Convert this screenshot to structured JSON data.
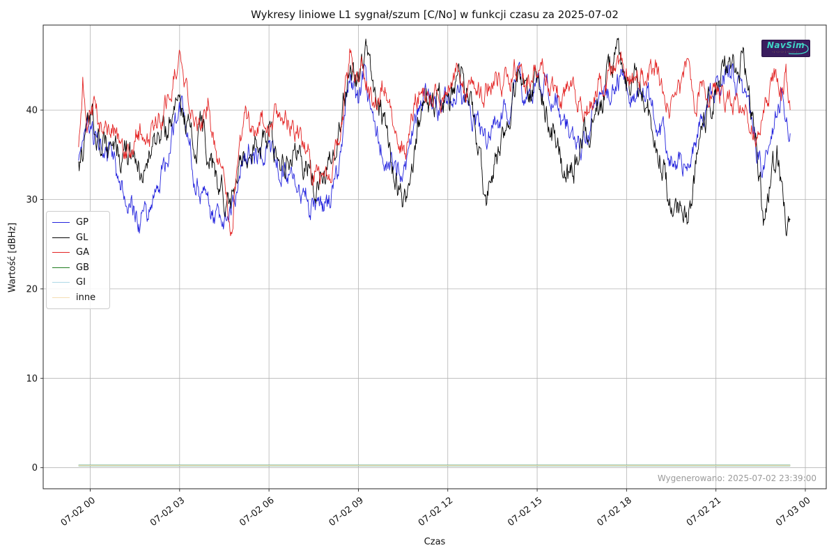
{
  "watermark": {
    "text": "Wygenerowano: 2025-07-02 23:39:00"
  },
  "logo": {
    "name": "NavSim",
    "subtext": "·:·:·:·:·:·:·:·",
    "bg_color": "#3a1d5e",
    "fg_color": "#3fd6c6",
    "accent_color": "#d9a43a"
  },
  "chart_data": {
    "type": "line",
    "title": "Wykresy liniowe L1 sygnał/szum [C/No] w funkcji czasu za 2025-07-02",
    "xlabel": "Czas",
    "ylabel": "Wartość [dBHz]",
    "grid": true,
    "legend_position": "center-left",
    "x_tick_labels": [
      "07-02 00",
      "07-02 03",
      "07-02 06",
      "07-02 09",
      "07-02 12",
      "07-02 15",
      "07-02 18",
      "07-02 21",
      "07-03 00"
    ],
    "x_tick_hours": [
      0,
      3,
      6,
      9,
      12,
      15,
      18,
      21,
      24
    ],
    "y_ticks": [
      0,
      10,
      20,
      30,
      40
    ],
    "xlim_hours": [
      -1.58,
      24.77
    ],
    "ylim": [
      -2.36,
      49.6
    ],
    "time_range_hours": [
      -0.39,
      23.5
    ],
    "grid_color": "#b3b3b3",
    "spine_color": "#262626",
    "noise": {
      "seed": 20250702,
      "rho": 0.74,
      "step_hours": 0.02
    },
    "series": [
      {
        "name": "GP",
        "color": "#2222dd",
        "width": 0.9,
        "noise_amp": 1.05,
        "keypoints": [
          [
            -0.39,
            33.5
          ],
          [
            -0.25,
            36.5
          ],
          [
            -0.1,
            40.3
          ],
          [
            0.1,
            37
          ],
          [
            0.35,
            36.5
          ],
          [
            0.65,
            34.5
          ],
          [
            0.95,
            32.5
          ],
          [
            1.25,
            30.5
          ],
          [
            1.65,
            27.5
          ],
          [
            1.95,
            28.5
          ],
          [
            2.2,
            31
          ],
          [
            2.5,
            34
          ],
          [
            2.8,
            38.5
          ],
          [
            3.05,
            40.3
          ],
          [
            3.3,
            37
          ],
          [
            3.6,
            31.5
          ],
          [
            3.9,
            29.5
          ],
          [
            4.2,
            27
          ],
          [
            4.5,
            28
          ],
          [
            4.75,
            30
          ],
          [
            5.05,
            33.5
          ],
          [
            5.3,
            35.5
          ],
          [
            5.6,
            34
          ],
          [
            5.9,
            35.5
          ],
          [
            6.2,
            34.5
          ],
          [
            6.5,
            33
          ],
          [
            6.9,
            31.5
          ],
          [
            7.3,
            30
          ],
          [
            7.7,
            28.2
          ],
          [
            8.0,
            29.5
          ],
          [
            8.3,
            33
          ],
          [
            8.6,
            41
          ],
          [
            8.75,
            43.3
          ],
          [
            9.0,
            40.5
          ],
          [
            9.2,
            44
          ],
          [
            9.45,
            40
          ],
          [
            9.7,
            37
          ],
          [
            10.0,
            34.5
          ],
          [
            10.3,
            33.5
          ],
          [
            10.6,
            34
          ],
          [
            10.9,
            38.5
          ],
          [
            11.2,
            41.8
          ],
          [
            11.5,
            40.5
          ],
          [
            11.8,
            40
          ],
          [
            12.1,
            41.5
          ],
          [
            12.35,
            43
          ],
          [
            12.6,
            40.5
          ],
          [
            12.9,
            38.8
          ],
          [
            13.2,
            36.8
          ],
          [
            13.5,
            37.5
          ],
          [
            13.8,
            39.5
          ],
          [
            14.1,
            41
          ],
          [
            14.35,
            42.8
          ],
          [
            14.6,
            41
          ],
          [
            14.9,
            42.3
          ],
          [
            15.2,
            43.2
          ],
          [
            15.5,
            41.5
          ],
          [
            15.8,
            39
          ],
          [
            16.1,
            37.8
          ],
          [
            16.45,
            36
          ],
          [
            16.8,
            38.5
          ],
          [
            17.1,
            40.5
          ],
          [
            17.45,
            42.5
          ],
          [
            17.75,
            43.5
          ],
          [
            18.0,
            42.5
          ],
          [
            18.25,
            41.5
          ],
          [
            18.5,
            43
          ],
          [
            18.75,
            41.5
          ],
          [
            19.0,
            39
          ],
          [
            19.3,
            36.5
          ],
          [
            19.6,
            34
          ],
          [
            19.9,
            33.8
          ],
          [
            20.2,
            36
          ],
          [
            20.5,
            38.5
          ],
          [
            20.8,
            41
          ],
          [
            21.1,
            42.8
          ],
          [
            21.4,
            43.5
          ],
          [
            21.7,
            43
          ],
          [
            22.0,
            40.5
          ],
          [
            22.3,
            36.5
          ],
          [
            22.55,
            33
          ],
          [
            22.8,
            35.5
          ],
          [
            23.0,
            38.5
          ],
          [
            23.2,
            41.8
          ],
          [
            23.35,
            40
          ],
          [
            23.5,
            37
          ]
        ]
      },
      {
        "name": "GL",
        "color": "#000000",
        "width": 0.9,
        "noise_amp": 1.25,
        "keypoints": [
          [
            -0.39,
            33.5
          ],
          [
            -0.15,
            36
          ],
          [
            0.0,
            38.5
          ],
          [
            0.3,
            37
          ],
          [
            0.6,
            35.5
          ],
          [
            0.9,
            35
          ],
          [
            1.2,
            36
          ],
          [
            1.5,
            34.5
          ],
          [
            1.8,
            34
          ],
          [
            2.1,
            36
          ],
          [
            2.4,
            38
          ],
          [
            2.7,
            39.5
          ],
          [
            3.0,
            40.5
          ],
          [
            3.25,
            38
          ],
          [
            3.5,
            36.5
          ],
          [
            3.75,
            38
          ],
          [
            4.0,
            35
          ],
          [
            4.3,
            32
          ],
          [
            4.6,
            29.5
          ],
          [
            4.85,
            31
          ],
          [
            5.1,
            35
          ],
          [
            5.4,
            37
          ],
          [
            5.7,
            35.5
          ],
          [
            6.0,
            36.5
          ],
          [
            6.3,
            35
          ],
          [
            6.6,
            34.5
          ],
          [
            6.9,
            35.5
          ],
          [
            7.2,
            33.5
          ],
          [
            7.55,
            32
          ],
          [
            7.9,
            32.5
          ],
          [
            8.2,
            34
          ],
          [
            8.5,
            40
          ],
          [
            8.75,
            45
          ],
          [
            9.0,
            43
          ],
          [
            9.25,
            45.2
          ],
          [
            9.5,
            42
          ],
          [
            9.75,
            40
          ],
          [
            10.0,
            37
          ],
          [
            10.25,
            33
          ],
          [
            10.5,
            29
          ],
          [
            10.75,
            33
          ],
          [
            11.0,
            38
          ],
          [
            11.2,
            42.3
          ],
          [
            11.5,
            41
          ],
          [
            11.8,
            42.5
          ],
          [
            12.05,
            40
          ],
          [
            12.35,
            44.5
          ],
          [
            12.6,
            42.5
          ],
          [
            12.85,
            39
          ],
          [
            13.1,
            33.5
          ],
          [
            13.3,
            31
          ],
          [
            13.6,
            34
          ],
          [
            13.9,
            38
          ],
          [
            14.2,
            42
          ],
          [
            14.5,
            43.5
          ],
          [
            14.75,
            41
          ],
          [
            15.0,
            43.7
          ],
          [
            15.3,
            40
          ],
          [
            15.6,
            36.5
          ],
          [
            15.9,
            33.5
          ],
          [
            16.1,
            31.5
          ],
          [
            16.35,
            35
          ],
          [
            16.6,
            37.5
          ],
          [
            16.9,
            39.5
          ],
          [
            17.2,
            42
          ],
          [
            17.55,
            45.8
          ],
          [
            17.8,
            44.5
          ],
          [
            18.05,
            42
          ],
          [
            18.35,
            43.8
          ],
          [
            18.6,
            41
          ],
          [
            18.9,
            37.5
          ],
          [
            19.2,
            34.5
          ],
          [
            19.45,
            29
          ],
          [
            19.65,
            27.5
          ],
          [
            19.85,
            30
          ],
          [
            20.05,
            27
          ],
          [
            20.3,
            33
          ],
          [
            20.6,
            38.5
          ],
          [
            20.9,
            42
          ],
          [
            21.2,
            44.5
          ],
          [
            21.45,
            45.5
          ],
          [
            21.7,
            44
          ],
          [
            21.9,
            46.2
          ],
          [
            22.1,
            43
          ],
          [
            22.35,
            37
          ],
          [
            22.6,
            27.8
          ],
          [
            22.85,
            33
          ],
          [
            23.05,
            35.5
          ],
          [
            23.35,
            26.8
          ],
          [
            23.5,
            29.8
          ]
        ]
      },
      {
        "name": "GA",
        "color": "#e32222",
        "width": 0.9,
        "noise_amp": 1.0,
        "keypoints": [
          [
            -0.39,
            36
          ],
          [
            -0.25,
            43
          ],
          [
            -0.1,
            38
          ],
          [
            0.1,
            40
          ],
          [
            0.4,
            37.5
          ],
          [
            0.7,
            38
          ],
          [
            1.0,
            36.5
          ],
          [
            1.3,
            35.5
          ],
          [
            1.6,
            38
          ],
          [
            1.9,
            36
          ],
          [
            2.2,
            39
          ],
          [
            2.5,
            40
          ],
          [
            2.8,
            44
          ],
          [
            3.0,
            45.3
          ],
          [
            3.2,
            42
          ],
          [
            3.45,
            40
          ],
          [
            3.7,
            37.5
          ],
          [
            3.95,
            41
          ],
          [
            4.2,
            36
          ],
          [
            4.5,
            31
          ],
          [
            4.75,
            27.3
          ],
          [
            5.0,
            34
          ],
          [
            5.2,
            40
          ],
          [
            5.45,
            37
          ],
          [
            5.7,
            38.5
          ],
          [
            6.0,
            38.8
          ],
          [
            6.3,
            39
          ],
          [
            6.6,
            38
          ],
          [
            6.9,
            38.5
          ],
          [
            7.2,
            36
          ],
          [
            7.5,
            34
          ],
          [
            7.9,
            31.5
          ],
          [
            8.15,
            33
          ],
          [
            8.4,
            38
          ],
          [
            8.65,
            44
          ],
          [
            8.75,
            47
          ],
          [
            8.9,
            43
          ],
          [
            9.1,
            44.3
          ],
          [
            9.35,
            42.5
          ],
          [
            9.6,
            40.5
          ],
          [
            9.85,
            43
          ],
          [
            10.1,
            40
          ],
          [
            10.35,
            37
          ],
          [
            10.6,
            36
          ],
          [
            10.85,
            41
          ],
          [
            11.1,
            42.5
          ],
          [
            11.4,
            40.5
          ],
          [
            11.7,
            41.5
          ],
          [
            12.0,
            43
          ],
          [
            12.3,
            44.5
          ],
          [
            12.6,
            41.5
          ],
          [
            12.9,
            43
          ],
          [
            13.2,
            42
          ],
          [
            13.5,
            44
          ],
          [
            13.8,
            43
          ],
          [
            14.1,
            43.5
          ],
          [
            14.35,
            44.8
          ],
          [
            14.6,
            42
          ],
          [
            14.9,
            44
          ],
          [
            15.2,
            45.3
          ],
          [
            15.5,
            42
          ],
          [
            15.8,
            41
          ],
          [
            16.1,
            43
          ],
          [
            16.4,
            41
          ],
          [
            16.7,
            40
          ],
          [
            17.0,
            42
          ],
          [
            17.3,
            43.5
          ],
          [
            17.6,
            44.5
          ],
          [
            17.9,
            45
          ],
          [
            18.1,
            44
          ],
          [
            18.35,
            43.5
          ],
          [
            18.65,
            44
          ],
          [
            18.95,
            44.5
          ],
          [
            19.2,
            43
          ],
          [
            19.5,
            40.5
          ],
          [
            19.8,
            42
          ],
          [
            20.0,
            43.8
          ],
          [
            20.3,
            41
          ],
          [
            20.6,
            42.5
          ],
          [
            20.9,
            41.5
          ],
          [
            21.2,
            42
          ],
          [
            21.5,
            41
          ],
          [
            21.8,
            40.5
          ],
          [
            22.1,
            39.5
          ],
          [
            22.35,
            37.5
          ],
          [
            22.6,
            39.5
          ],
          [
            22.85,
            43
          ],
          [
            23.05,
            43.8
          ],
          [
            23.2,
            41
          ],
          [
            23.35,
            43.5
          ],
          [
            23.5,
            39
          ]
        ]
      },
      {
        "name": "GB",
        "color": "#1e7b1e",
        "width": 2.2,
        "noise_amp": 0,
        "keypoints": [
          [
            -0.39,
            0.25
          ],
          [
            23.5,
            0.25
          ]
        ]
      },
      {
        "name": "GI",
        "color": "#add8e6",
        "width": 1.8,
        "noise_amp": 0,
        "keypoints": [
          [
            -0.39,
            0.25
          ],
          [
            23.5,
            0.25
          ]
        ]
      },
      {
        "name": "inne",
        "color": "#f5deb3",
        "width": 1.1,
        "noise_amp": 0,
        "keypoints": [
          [
            -0.39,
            0.25
          ],
          [
            23.5,
            0.25
          ]
        ]
      }
    ]
  }
}
